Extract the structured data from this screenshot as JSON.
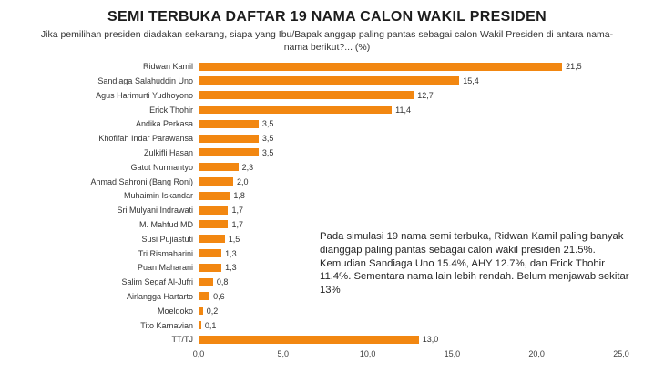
{
  "title": "SEMI TERBUKA DAFTAR 19 NAMA CALON WAKIL PRESIDEN",
  "subtitle": "Jika pemilihan presiden diadakan sekarang, siapa yang Ibu/Bapak anggap paling pantas sebagai calon Wakil Presiden di antara nama-nama berikut?... (%)",
  "annotation": "Pada simulasi 19 nama semi terbuka, Ridwan Kamil paling banyak dianggap paling pantas sebagai calon wakil presiden 21.5%. Kemudian Sandiaga Uno 15.4%, AHY 12.7%, dan Erick Thohir 11.4%. Sementara nama lain lebih rendah. Belum menjawab sekitar 13%",
  "colors": {
    "bar": "#F28711",
    "axis": "#808080",
    "text": "#333333"
  },
  "chart_data": {
    "type": "bar",
    "orientation": "horizontal",
    "title": "SEMI TERBUKA DAFTAR 19 NAMA CALON WAKIL PRESIDEN",
    "categories": [
      "Ridwan Kamil",
      "Sandiaga Salahuddin Uno",
      "Agus Harimurti Yudhoyono",
      "Erick Thohir",
      "Andika Perkasa",
      "Khofifah Indar Parawansa",
      "Zulkifli Hasan",
      "Gatot Nurmantyo",
      "Ahmad Sahroni (Bang Roni)",
      "Muhaimin Iskandar",
      "Sri Mulyani Indrawati",
      "M. Mahfud MD",
      "Susi Pujiastuti",
      "Tri Rismaharini",
      "Puan Maharani",
      "Salim Segaf Al-Jufri",
      "Airlangga Hartarto",
      "Moeldoko",
      "Tito Karnavian",
      "TT/TJ"
    ],
    "values": [
      21.5,
      15.4,
      12.7,
      11.4,
      3.5,
      3.5,
      3.5,
      2.3,
      2.0,
      1.8,
      1.7,
      1.7,
      1.5,
      1.3,
      1.3,
      0.8,
      0.6,
      0.2,
      0.1,
      13.0
    ],
    "value_labels": [
      "21,5",
      "15,4",
      "12,7",
      "11,4",
      "3,5",
      "3,5",
      "3,5",
      "2,3",
      "2,0",
      "1,8",
      "1,7",
      "1,7",
      "1,5",
      "1,3",
      "1,3",
      "0,8",
      "0,6",
      "0,2",
      "0,1",
      "13,0"
    ],
    "xlabel": "",
    "ylabel": "",
    "xlim": [
      0,
      25
    ],
    "x_tick_values": [
      0,
      5,
      10,
      15,
      20,
      25
    ],
    "x_tick_labels": [
      "0,0",
      "5,0",
      "10,0",
      "15,0",
      "20,0",
      "25,0"
    ],
    "grid": false,
    "legend": false,
    "unit": "%"
  }
}
